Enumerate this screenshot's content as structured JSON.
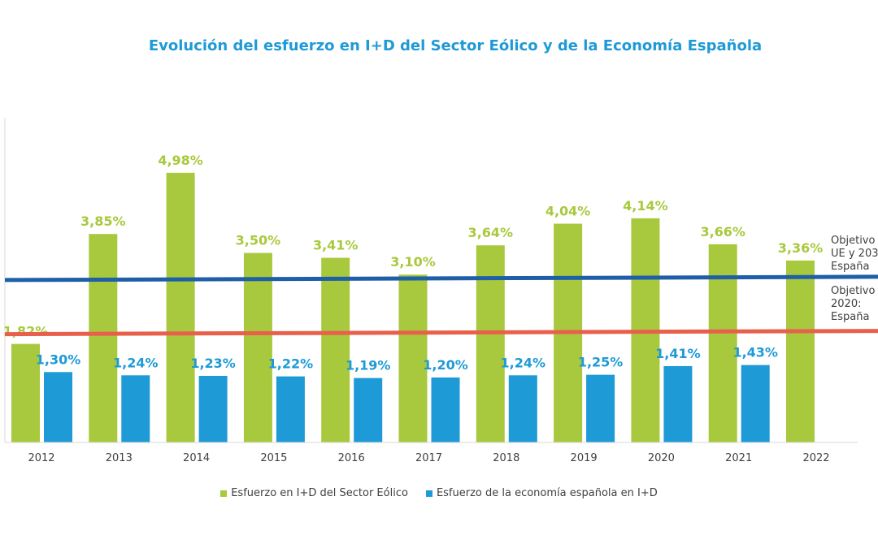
{
  "chart_data": {
    "type": "bar",
    "title": "Evolución del esfuerzo en I+D del Sector Eólico y de la Economía Española",
    "categories": [
      "2012",
      "2013",
      "2014",
      "2015",
      "2016",
      "2017",
      "2018",
      "2019",
      "2020",
      "2021",
      "2022"
    ],
    "series": [
      {
        "name": "Esfuerzo en I+D del Sector Eólico",
        "color": "#a8c93d",
        "values": [
          1.82,
          3.85,
          4.98,
          3.5,
          3.41,
          3.1,
          3.64,
          4.04,
          4.14,
          3.66,
          3.36
        ],
        "labels": [
          "1,82%",
          "3,85%",
          "4,98%",
          "3,50%",
          "3,41%",
          "3,10%",
          "3,64%",
          "4,04%",
          "4,14%",
          "3,66%",
          "3,36%"
        ]
      },
      {
        "name": "Esfuerzo de la economía española en I+D",
        "color": "#1e9ad6",
        "values": [
          1.3,
          1.24,
          1.23,
          1.22,
          1.19,
          1.2,
          1.24,
          1.25,
          1.41,
          1.43,
          null
        ],
        "labels": [
          "1,30%",
          "1,24%",
          "1,23%",
          "1,22%",
          "1,19%",
          "1,20%",
          "1,24%",
          "1,25%",
          "1,41%",
          "1,43%",
          ""
        ]
      }
    ],
    "reference_lines": [
      {
        "value": 3,
        "color": "#1f5fa8",
        "label_lines": [
          "Objetivo",
          "UE y 203",
          "España"
        ]
      },
      {
        "value": 2,
        "color": "#e8604c",
        "label_lines": [
          "Objetivo",
          "2020:",
          "España"
        ]
      }
    ],
    "ylim": [
      0,
      5.5
    ],
    "grid": false,
    "legend": "bottom",
    "xlabel": "",
    "ylabel": ""
  }
}
